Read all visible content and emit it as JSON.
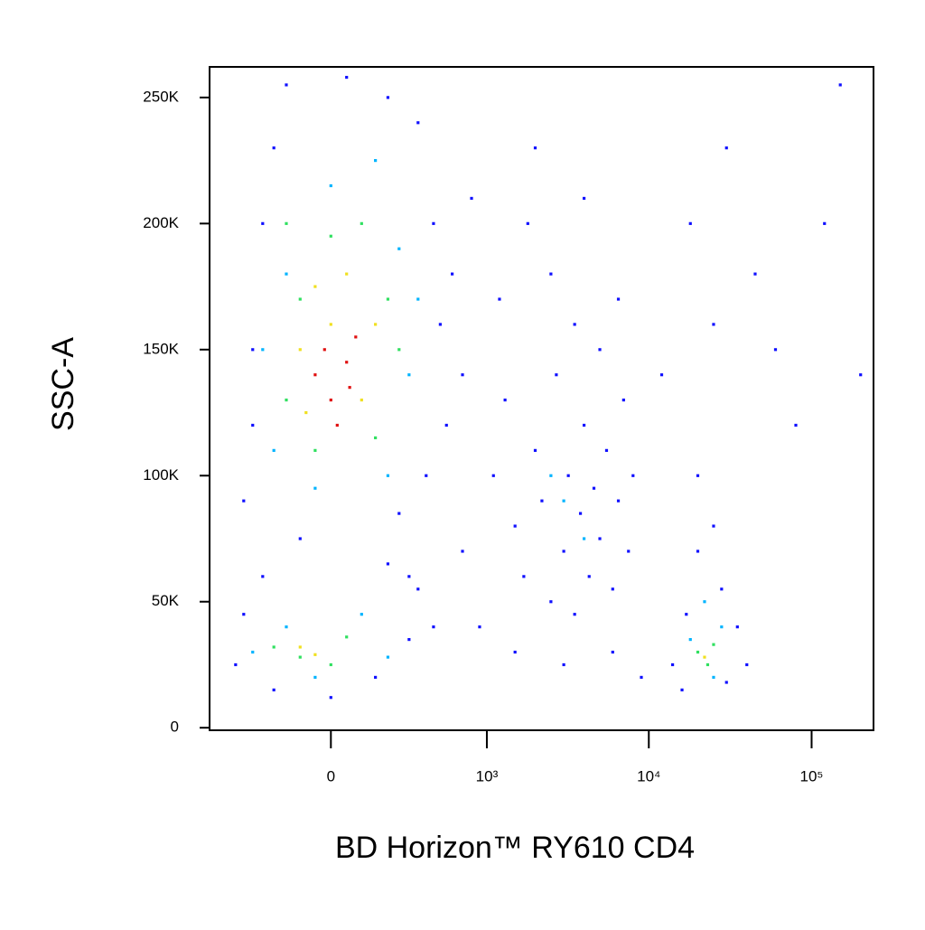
{
  "chart_data": {
    "type": "scatter",
    "x_label": "BD Horizon™ RY610 CD4",
    "y_label": "SSC-A",
    "xscale": "biexponential",
    "xlim": [
      -600,
      240000
    ],
    "xticks": [
      0,
      {
        "value": 1000,
        "label": "10³"
      },
      {
        "value": 10000,
        "label": "10⁴"
      },
      {
        "value": 100000,
        "label": "10⁵"
      }
    ],
    "ylim": [
      -1000,
      262144
    ],
    "yticks": [
      0,
      {
        "value": 50000,
        "label": "50K"
      },
      {
        "value": 100000,
        "label": "100K"
      },
      {
        "value": 150000,
        "label": "150K"
      },
      {
        "value": 200000,
        "label": "200K"
      },
      {
        "value": 250000,
        "label": "250K"
      }
    ],
    "series": [
      {
        "color": "#1010ff",
        "x": [
          -350,
          -300,
          -250,
          -200,
          -150,
          50,
          200,
          350,
          450,
          500,
          550,
          400,
          250,
          -100,
          -300,
          600,
          700,
          800,
          300,
          -400,
          -350,
          -200,
          0,
          150,
          300,
          350,
          200,
          -250,
          450,
          1100,
          1300,
          1500,
          1700,
          2000,
          2200,
          2500,
          2700,
          3000,
          3200,
          3500,
          3800,
          4000,
          4300,
          4600,
          5000,
          5500,
          6000,
          6500,
          7000,
          7500,
          8000,
          1200,
          1800,
          2500,
          3500,
          5000,
          6500,
          900,
          1500,
          3000,
          6000,
          9000,
          2000,
          4000,
          700,
          12000,
          18000,
          25000,
          30000,
          45000,
          60000,
          80000,
          120000,
          150000,
          200000,
          20000,
          25000,
          14000,
          17000,
          28000,
          35000,
          40000,
          20000,
          16000,
          30000
        ],
        "y": [
          90000,
          150000,
          200000,
          230000,
          255000,
          258000,
          250000,
          240000,
          200000,
          160000,
          120000,
          100000,
          85000,
          75000,
          120000,
          180000,
          140000,
          210000,
          60000,
          25000,
          45000,
          15000,
          12000,
          20000,
          35000,
          55000,
          65000,
          60000,
          40000,
          100000,
          130000,
          80000,
          60000,
          110000,
          90000,
          50000,
          140000,
          70000,
          100000,
          45000,
          85000,
          120000,
          60000,
          95000,
          75000,
          110000,
          55000,
          90000,
          130000,
          70000,
          100000,
          170000,
          200000,
          180000,
          160000,
          150000,
          170000,
          40000,
          30000,
          25000,
          30000,
          20000,
          230000,
          210000,
          70000,
          140000,
          200000,
          160000,
          230000,
          180000,
          150000,
          120000,
          200000,
          255000,
          140000,
          100000,
          80000,
          25000,
          45000,
          55000,
          40000,
          25000,
          70000,
          15000,
          18000
        ]
      },
      {
        "color": "#00b4ff",
        "x": [
          -200,
          -150,
          0,
          150,
          250,
          300,
          200,
          -50,
          -250,
          350,
          -300,
          -150,
          100,
          200,
          -50,
          3000,
          4000,
          2500,
          18000,
          28000,
          22000,
          25000
        ],
        "y": [
          110000,
          180000,
          215000,
          225000,
          190000,
          140000,
          100000,
          95000,
          150000,
          170000,
          30000,
          40000,
          45000,
          28000,
          20000,
          90000,
          75000,
          100000,
          35000,
          40000,
          50000,
          20000
        ]
      },
      {
        "color": "#30e060",
        "x": [
          -150,
          -100,
          0,
          100,
          200,
          250,
          150,
          -50,
          -150,
          -200,
          -100,
          50,
          0,
          20000,
          25000,
          23000
        ],
        "y": [
          130000,
          170000,
          195000,
          200000,
          170000,
          150000,
          115000,
          110000,
          200000,
          32000,
          28000,
          36000,
          25000,
          30000,
          33000,
          25000
        ]
      },
      {
        "color": "#f0e020",
        "x": [
          -100,
          -50,
          50,
          150,
          100,
          -80,
          0,
          -100,
          -50,
          22000
        ],
        "y": [
          150000,
          175000,
          180000,
          160000,
          130000,
          125000,
          160000,
          32000,
          29000,
          28000
        ]
      },
      {
        "color": "#e01010",
        "x": [
          -50,
          0,
          50,
          20,
          80,
          -20,
          60
        ],
        "y": [
          140000,
          130000,
          145000,
          120000,
          155000,
          150000,
          135000
        ]
      }
    ]
  }
}
